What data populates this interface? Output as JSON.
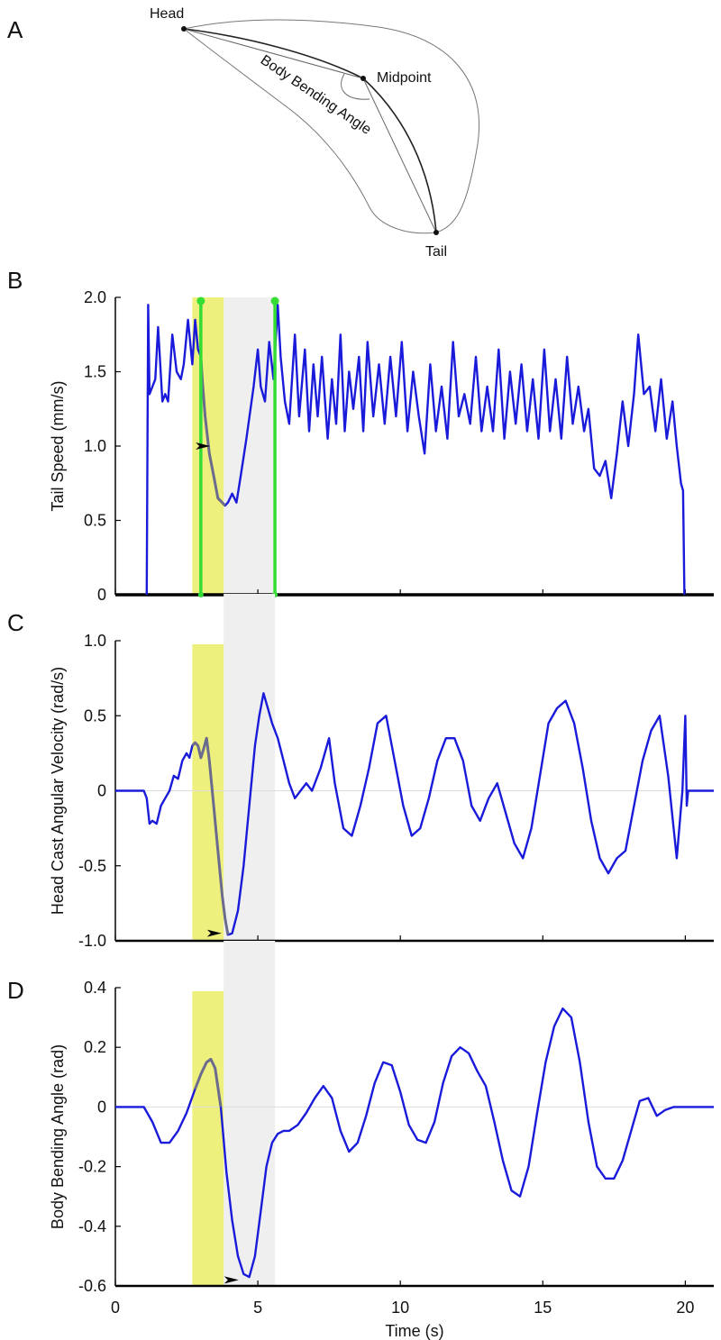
{
  "panels": {
    "A": "A",
    "B": "B",
    "C": "C",
    "D": "D"
  },
  "diagram": {
    "head_label": "Head",
    "midpoint_label": "Midpoint",
    "tail_label": "Tail",
    "angle_label": "Body Bending Angle"
  },
  "colors": {
    "trace": "#1a1adb",
    "highlight_trace": "#6b6b8e",
    "yellow_band": "#eef07e",
    "gray_band": "#efefef",
    "green_marker": "#33dd33"
  },
  "chart_data": [
    {
      "type": "line",
      "id": "B",
      "title": "",
      "ylabel": "Tail Speed (mm/s)",
      "xlabel": "",
      "xlim": [
        0,
        21
      ],
      "ylim": [
        0,
        2.0
      ],
      "xticks": [
        0,
        5,
        10,
        15,
        20
      ],
      "yticks": [
        0,
        0.5,
        1.0,
        1.5,
        2.0
      ],
      "ytick_labels": [
        "0",
        "0.5",
        "1.0",
        "1.5",
        "2.0"
      ],
      "yellow_band": [
        2.7,
        3.8
      ],
      "gray_band": [
        3.8,
        5.6
      ],
      "green_markers": [
        3.0,
        5.6
      ],
      "arrowhead": [
        3.2,
        1.0
      ],
      "highlight_range": [
        3.0,
        3.9
      ],
      "x": [
        1.1,
        1.15,
        1.2,
        1.4,
        1.5,
        1.65,
        1.75,
        1.85,
        2.0,
        2.15,
        2.3,
        2.4,
        2.55,
        2.7,
        2.8,
        2.9,
        3.0,
        3.05,
        3.15,
        3.3,
        3.45,
        3.6,
        3.75,
        3.85,
        3.95,
        4.1,
        4.25,
        4.4,
        4.6,
        4.85,
        5.0,
        5.1,
        5.25,
        5.4,
        5.55,
        5.7,
        5.8,
        5.95,
        6.1,
        6.3,
        6.45,
        6.65,
        6.8,
        6.95,
        7.1,
        7.25,
        7.45,
        7.6,
        7.75,
        7.9,
        8.05,
        8.2,
        8.35,
        8.55,
        8.7,
        8.85,
        9.05,
        9.25,
        9.45,
        9.65,
        9.85,
        10.05,
        10.25,
        10.45,
        10.65,
        10.85,
        11.05,
        11.25,
        11.45,
        11.65,
        11.85,
        12.05,
        12.25,
        12.45,
        12.65,
        12.85,
        13.05,
        13.25,
        13.45,
        13.65,
        13.85,
        14.05,
        14.25,
        14.45,
        14.65,
        14.85,
        15.05,
        15.25,
        15.45,
        15.65,
        15.85,
        16.05,
        16.25,
        16.45,
        16.6,
        16.8,
        17.0,
        17.2,
        17.4,
        17.6,
        17.8,
        18.0,
        18.2,
        18.35,
        18.55,
        18.75,
        18.95,
        19.15,
        19.35,
        19.55,
        19.7,
        19.85,
        19.92,
        19.97
      ],
      "values": [
        0.0,
        1.95,
        1.35,
        1.45,
        1.8,
        1.3,
        1.35,
        1.3,
        1.75,
        1.5,
        1.45,
        1.55,
        1.85,
        1.55,
        1.85,
        1.65,
        1.6,
        1.45,
        1.2,
        0.95,
        0.8,
        0.65,
        0.62,
        0.6,
        0.62,
        0.68,
        0.62,
        0.8,
        1.05,
        1.4,
        1.65,
        1.4,
        1.3,
        1.7,
        1.45,
        1.95,
        1.6,
        1.3,
        1.15,
        1.75,
        1.2,
        1.65,
        1.1,
        1.55,
        1.2,
        1.6,
        1.05,
        1.45,
        1.15,
        1.75,
        1.1,
        1.5,
        1.25,
        1.6,
        1.1,
        1.7,
        1.2,
        1.55,
        1.15,
        1.6,
        1.2,
        1.7,
        1.1,
        1.5,
        1.2,
        0.95,
        1.55,
        1.1,
        1.4,
        1.05,
        1.7,
        1.2,
        1.35,
        1.15,
        1.6,
        1.1,
        1.4,
        1.1,
        1.65,
        1.05,
        1.5,
        1.15,
        1.55,
        1.1,
        1.45,
        1.05,
        1.65,
        1.1,
        1.45,
        1.05,
        1.6,
        1.15,
        1.4,
        1.1,
        1.25,
        0.85,
        0.8,
        0.9,
        0.65,
        0.95,
        1.3,
        1.0,
        1.35,
        1.75,
        1.35,
        1.4,
        1.1,
        1.45,
        1.05,
        1.3,
        1.0,
        0.75,
        0.7,
        0.0
      ]
    },
    {
      "type": "line",
      "id": "C",
      "title": "",
      "ylabel": "Head Cast Angular Velocity (rad/s)",
      "xlabel": "",
      "xlim": [
        0,
        21
      ],
      "ylim": [
        -1.0,
        1.0
      ],
      "xticks": [
        0,
        5,
        10,
        15,
        20
      ],
      "yticks": [
        -1.0,
        -0.5,
        0,
        0.5,
        1.0
      ],
      "ytick_labels": [
        "-1.0",
        "-0.5",
        "0",
        "0.5",
        "1.0"
      ],
      "yellow_band": [
        2.7,
        3.8
      ],
      "gray_band": [
        3.8,
        5.6
      ],
      "arrowhead": [
        3.6,
        -0.95
      ],
      "highlight_range": [
        2.7,
        3.95
      ],
      "x": [
        0,
        1.0,
        1.1,
        1.2,
        1.3,
        1.45,
        1.6,
        1.75,
        1.9,
        2.05,
        2.2,
        2.35,
        2.5,
        2.6,
        2.7,
        2.8,
        2.9,
        3.0,
        3.1,
        3.2,
        3.3,
        3.45,
        3.6,
        3.75,
        3.85,
        3.95,
        4.1,
        4.3,
        4.5,
        4.7,
        4.9,
        5.05,
        5.2,
        5.35,
        5.5,
        5.7,
        5.9,
        6.1,
        6.3,
        6.5,
        6.7,
        6.9,
        7.2,
        7.5,
        7.7,
        8.0,
        8.3,
        8.6,
        8.9,
        9.2,
        9.5,
        9.8,
        10.1,
        10.4,
        10.7,
        11.0,
        11.3,
        11.6,
        11.9,
        12.2,
        12.5,
        12.8,
        13.1,
        13.4,
        13.7,
        14.0,
        14.3,
        14.6,
        14.9,
        15.2,
        15.5,
        15.8,
        16.1,
        16.4,
        16.7,
        17.0,
        17.3,
        17.6,
        17.9,
        18.2,
        18.5,
        18.8,
        19.1,
        19.4,
        19.7,
        19.9,
        20.0,
        20.05,
        20.1,
        20.15,
        21.0
      ],
      "values": [
        0,
        0,
        -0.05,
        -0.22,
        -0.2,
        -0.22,
        -0.1,
        -0.05,
        0.0,
        0.1,
        0.08,
        0.2,
        0.25,
        0.22,
        0.3,
        0.32,
        0.3,
        0.22,
        0.28,
        0.35,
        0.2,
        -0.1,
        -0.4,
        -0.7,
        -0.85,
        -0.96,
        -0.95,
        -0.8,
        -0.5,
        -0.1,
        0.3,
        0.5,
        0.65,
        0.55,
        0.45,
        0.35,
        0.2,
        0.05,
        -0.05,
        0.0,
        0.05,
        0.0,
        0.15,
        0.35,
        0.05,
        -0.25,
        -0.3,
        -0.1,
        0.15,
        0.45,
        0.5,
        0.2,
        -0.1,
        -0.3,
        -0.25,
        -0.05,
        0.2,
        0.35,
        0.35,
        0.2,
        -0.1,
        -0.2,
        -0.05,
        0.05,
        -0.15,
        -0.35,
        -0.45,
        -0.25,
        0.1,
        0.45,
        0.55,
        0.6,
        0.45,
        0.15,
        -0.2,
        -0.45,
        -0.55,
        -0.45,
        -0.4,
        -0.1,
        0.2,
        0.4,
        0.5,
        0.1,
        -0.45,
        0.0,
        0.5,
        -0.1,
        0.0,
        0.0,
        0.0
      ]
    },
    {
      "type": "line",
      "id": "D",
      "title": "",
      "ylabel": "Body Bending Angle (rad)",
      "xlabel": "Time (s)",
      "xlim": [
        0,
        21
      ],
      "ylim": [
        -0.6,
        0.4
      ],
      "xticks": [
        0,
        5,
        10,
        15,
        20
      ],
      "xtick_labels": [
        "0",
        "5",
        "10",
        "15",
        "20"
      ],
      "yticks": [
        -0.6,
        -0.4,
        -0.2,
        0,
        0.2,
        0.4
      ],
      "ytick_labels": [
        "-0.6",
        "-0.4",
        "-0.2",
        "0",
        "0.2",
        "0.4"
      ],
      "yellow_band": [
        2.7,
        3.8
      ],
      "gray_band": [
        3.8,
        5.6
      ],
      "arrowhead": [
        4.2,
        -0.58
      ],
      "highlight_range": [
        2.7,
        3.75
      ],
      "x": [
        0,
        1.0,
        1.3,
        1.6,
        1.9,
        2.2,
        2.5,
        2.8,
        3.0,
        3.2,
        3.35,
        3.5,
        3.7,
        3.9,
        4.1,
        4.3,
        4.5,
        4.7,
        4.9,
        5.1,
        5.3,
        5.5,
        5.7,
        5.9,
        6.1,
        6.4,
        6.7,
        7.0,
        7.3,
        7.6,
        7.9,
        8.2,
        8.5,
        8.8,
        9.1,
        9.4,
        9.7,
        10.0,
        10.3,
        10.6,
        10.9,
        11.2,
        11.5,
        11.8,
        12.1,
        12.4,
        12.7,
        13.0,
        13.3,
        13.6,
        13.9,
        14.2,
        14.5,
        14.8,
        15.1,
        15.4,
        15.7,
        16.0,
        16.3,
        16.6,
        16.9,
        17.2,
        17.5,
        17.8,
        18.1,
        18.4,
        18.7,
        19.0,
        19.3,
        19.6,
        19.85,
        20.0,
        20.1,
        20.2,
        21.0
      ],
      "values": [
        0,
        0,
        -0.05,
        -0.12,
        -0.12,
        -0.08,
        -0.02,
        0.06,
        0.11,
        0.15,
        0.16,
        0.13,
        0.0,
        -0.22,
        -0.38,
        -0.5,
        -0.56,
        -0.57,
        -0.5,
        -0.35,
        -0.2,
        -0.12,
        -0.09,
        -0.08,
        -0.08,
        -0.06,
        -0.02,
        0.03,
        0.07,
        0.03,
        -0.08,
        -0.15,
        -0.12,
        -0.03,
        0.08,
        0.15,
        0.14,
        0.05,
        -0.06,
        -0.11,
        -0.12,
        -0.05,
        0.08,
        0.17,
        0.2,
        0.18,
        0.12,
        0.07,
        -0.05,
        -0.18,
        -0.28,
        -0.3,
        -0.2,
        -0.02,
        0.15,
        0.27,
        0.33,
        0.3,
        0.15,
        -0.05,
        -0.2,
        -0.24,
        -0.24,
        -0.18,
        -0.08,
        0.02,
        0.03,
        -0.03,
        -0.01,
        0.0,
        0.0,
        0.0,
        0.0,
        0.0,
        0.0
      ]
    }
  ]
}
